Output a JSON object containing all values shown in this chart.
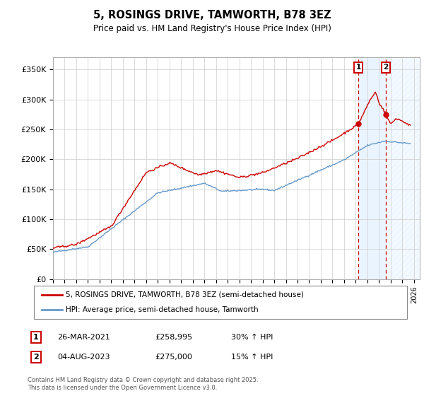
{
  "title": "5, ROSINGS DRIVE, TAMWORTH, B78 3EZ",
  "subtitle": "Price paid vs. HM Land Registry's House Price Index (HPI)",
  "ylim": [
    0,
    370000
  ],
  "xlim_start": 1995.0,
  "xlim_end": 2026.5,
  "yticks": [
    0,
    50000,
    100000,
    150000,
    200000,
    250000,
    300000,
    350000
  ],
  "ytick_labels": [
    "£0",
    "£50K",
    "£100K",
    "£150K",
    "£200K",
    "£250K",
    "£300K",
    "£350K"
  ],
  "transaction1_date": 2021.23,
  "transaction1_price": 258995,
  "transaction1_label": "26-MAR-2021",
  "transaction1_pct": "30% ↑ HPI",
  "transaction2_date": 2023.59,
  "transaction2_price": 275000,
  "transaction2_label": "04-AUG-2023",
  "transaction2_pct": "15% ↑ HPI",
  "red_line_color": "#cc0000",
  "blue_line_color": "#6699cc",
  "dashed_line_color": "#cc0000",
  "shaded_region_color": "#ddeeff",
  "legend_label_red": "5, ROSINGS DRIVE, TAMWORTH, B78 3EZ (semi-detached house)",
  "legend_label_blue": "HPI: Average price, semi-detached house, Tamworth",
  "footer": "Contains HM Land Registry data © Crown copyright and database right 2025.\nThis data is licensed under the Open Government Licence v3.0.",
  "background_color": "#ffffff",
  "grid_color": "#cccccc"
}
